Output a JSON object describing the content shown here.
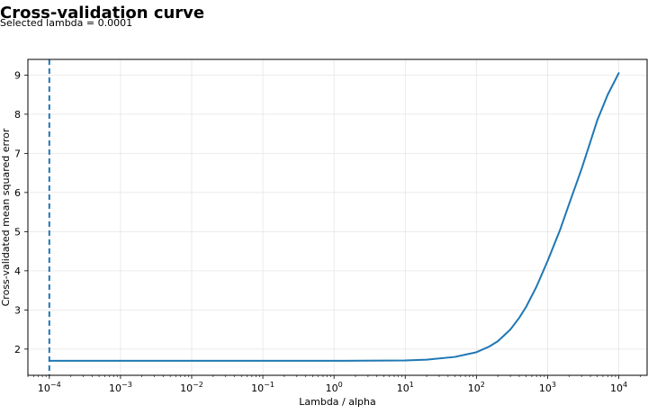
{
  "chart_data": {
    "type": "line",
    "title": "Cross-validation curve",
    "subtitle": "Selected lambda = 0.0001",
    "xlabel": "Lambda / alpha",
    "ylabel": "Cross-validated mean squared error",
    "xscale": "log",
    "xlim": [
      5e-05,
      25000
    ],
    "ylim": [
      1.33,
      9.4
    ],
    "grid": true,
    "x_ticks": [
      {
        "value": 0.0001,
        "base": "10",
        "exp": "−4"
      },
      {
        "value": 0.001,
        "base": "10",
        "exp": "−3"
      },
      {
        "value": 0.01,
        "base": "10",
        "exp": "−2"
      },
      {
        "value": 0.1,
        "base": "10",
        "exp": "−1"
      },
      {
        "value": 1,
        "base": "10",
        "exp": "0"
      },
      {
        "value": 10,
        "base": "10",
        "exp": "1"
      },
      {
        "value": 100,
        "base": "10",
        "exp": "2"
      },
      {
        "value": 1000,
        "base": "10",
        "exp": "3"
      },
      {
        "value": 10000,
        "base": "10",
        "exp": "4"
      }
    ],
    "y_ticks": [
      2,
      3,
      4,
      5,
      6,
      7,
      8,
      9
    ],
    "selected_lambda": 0.0001,
    "series": [
      {
        "color": "#1f77b4",
        "x": [
          0.0001,
          0.001,
          0.01,
          0.1,
          1,
          10,
          20,
          50,
          100,
          150,
          200,
          300,
          400,
          500,
          700,
          1000,
          1500,
          2000,
          3000,
          4000,
          5000,
          7000,
          10000
        ],
        "y": [
          1.7,
          1.7,
          1.7,
          1.7,
          1.7,
          1.71,
          1.73,
          1.8,
          1.92,
          2.06,
          2.2,
          2.5,
          2.8,
          3.08,
          3.6,
          4.25,
          5.05,
          5.7,
          6.6,
          7.3,
          7.85,
          8.5,
          9.05
        ]
      }
    ],
    "vline": {
      "x": 0.0001,
      "style": "dashed",
      "color": "#1f77b4"
    }
  }
}
